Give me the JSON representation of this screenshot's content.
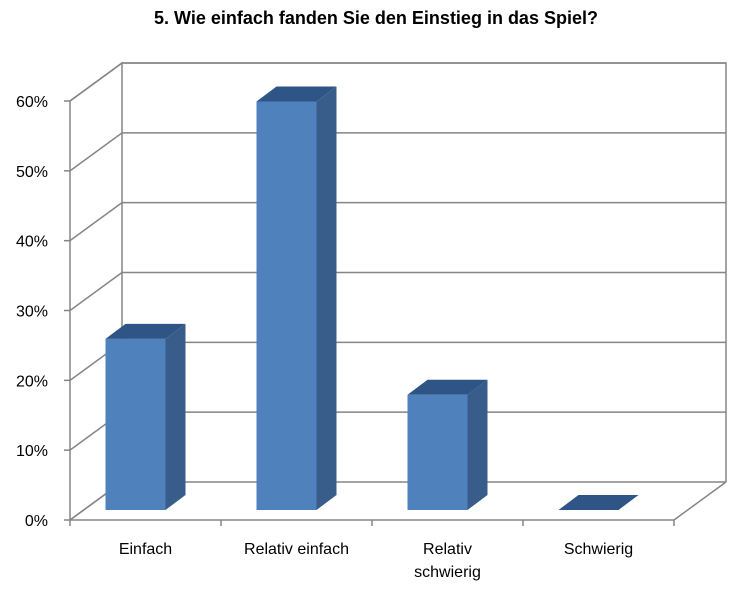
{
  "chart_data": {
    "type": "bar",
    "title": "5. Wie einfach fanden Sie den Einstieg in das Spiel?",
    "categories": [
      [
        "Einfach"
      ],
      [
        "Relativ einfach"
      ],
      [
        "Relativ",
        "schwierig"
      ],
      [
        "Schwierig"
      ]
    ],
    "values": [
      24.5,
      58.5,
      16.5,
      0
    ],
    "y_ticks": [
      "0%",
      "10%",
      "20%",
      "30%",
      "40%",
      "50%",
      "60%"
    ],
    "ylim": [
      0,
      60
    ],
    "grid": true,
    "legend": "none",
    "style": "3d-column",
    "colors": {
      "front": "#4F81BD",
      "side": "#385D8A",
      "top": "#2F5586",
      "grid": "#858585"
    }
  }
}
